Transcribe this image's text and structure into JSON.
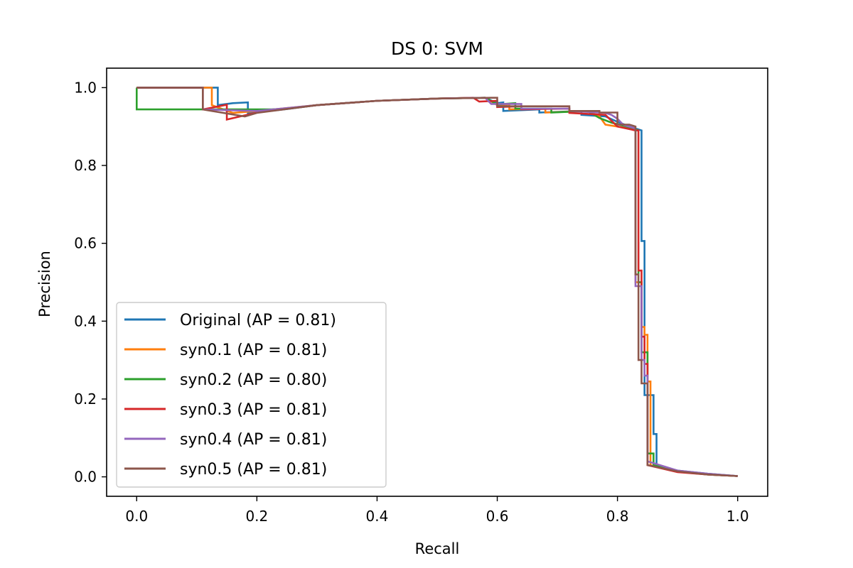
{
  "chart_data": {
    "type": "line",
    "title": "DS 0: SVM",
    "xlabel": "Recall",
    "ylabel": "Precision",
    "xlim": [
      -0.05,
      1.05
    ],
    "ylim": [
      -0.05,
      1.05
    ],
    "xticks": [
      "0.0",
      "0.2",
      "0.4",
      "0.6",
      "0.8",
      "1.0"
    ],
    "yticks": [
      "0.0",
      "0.2",
      "0.4",
      "0.6",
      "0.8",
      "1.0"
    ],
    "grid": false,
    "legend_position": "lower-left",
    "series": [
      {
        "name": "Original (AP = 0.81)",
        "color": "#1f77b4",
        "points": [
          [
            0,
            1.0
          ],
          [
            0.135,
            1.0
          ],
          [
            0.135,
            0.955
          ],
          [
            0.16,
            0.96
          ],
          [
            0.185,
            0.962
          ],
          [
            0.185,
            0.934
          ],
          [
            0.25,
            0.945
          ],
          [
            0.3,
            0.955
          ],
          [
            0.4,
            0.966
          ],
          [
            0.5,
            0.972
          ],
          [
            0.58,
            0.974
          ],
          [
            0.6,
            0.96
          ],
          [
            0.61,
            0.962
          ],
          [
            0.61,
            0.94
          ],
          [
            0.67,
            0.944
          ],
          [
            0.67,
            0.936
          ],
          [
            0.74,
            0.94
          ],
          [
            0.74,
            0.93
          ],
          [
            0.78,
            0.926
          ],
          [
            0.8,
            0.912
          ],
          [
            0.82,
            0.9
          ],
          [
            0.84,
            0.89
          ],
          [
            0.84,
            0.606
          ],
          [
            0.845,
            0.606
          ],
          [
            0.845,
            0.21
          ],
          [
            0.86,
            0.21
          ],
          [
            0.86,
            0.11
          ],
          [
            0.865,
            0.11
          ],
          [
            0.865,
            0.03
          ],
          [
            0.9,
            0.016
          ],
          [
            0.95,
            0.008
          ],
          [
            1.0,
            0.002
          ]
        ]
      },
      {
        "name": "syn0.1 (AP = 0.81)",
        "color": "#ff7f0e",
        "points": [
          [
            0,
            1.0
          ],
          [
            0.125,
            1.0
          ],
          [
            0.125,
            0.955
          ],
          [
            0.16,
            0.935
          ],
          [
            0.2,
            0.94
          ],
          [
            0.3,
            0.955
          ],
          [
            0.4,
            0.966
          ],
          [
            0.5,
            0.972
          ],
          [
            0.58,
            0.974
          ],
          [
            0.6,
            0.955
          ],
          [
            0.62,
            0.957
          ],
          [
            0.62,
            0.944
          ],
          [
            0.68,
            0.946
          ],
          [
            0.68,
            0.936
          ],
          [
            0.75,
            0.94
          ],
          [
            0.77,
            0.926
          ],
          [
            0.78,
            0.905
          ],
          [
            0.82,
            0.895
          ],
          [
            0.83,
            0.89
          ],
          [
            0.83,
            0.5
          ],
          [
            0.84,
            0.5
          ],
          [
            0.84,
            0.385
          ],
          [
            0.845,
            0.385
          ],
          [
            0.845,
            0.365
          ],
          [
            0.85,
            0.365
          ],
          [
            0.85,
            0.245
          ],
          [
            0.855,
            0.245
          ],
          [
            0.855,
            0.03
          ],
          [
            0.9,
            0.013
          ],
          [
            0.95,
            0.006
          ],
          [
            1.0,
            0.002
          ]
        ]
      },
      {
        "name": "syn0.2 (AP = 0.80)",
        "color": "#2ca02c",
        "points": [
          [
            0,
            1.0
          ],
          [
            0,
            0.944
          ],
          [
            0.225,
            0.944
          ],
          [
            0.25,
            0.946
          ],
          [
            0.3,
            0.955
          ],
          [
            0.4,
            0.966
          ],
          [
            0.5,
            0.972
          ],
          [
            0.58,
            0.974
          ],
          [
            0.6,
            0.957
          ],
          [
            0.63,
            0.96
          ],
          [
            0.63,
            0.946
          ],
          [
            0.69,
            0.946
          ],
          [
            0.69,
            0.936
          ],
          [
            0.75,
            0.94
          ],
          [
            0.77,
            0.922
          ],
          [
            0.79,
            0.91
          ],
          [
            0.82,
            0.898
          ],
          [
            0.835,
            0.89
          ],
          [
            0.835,
            0.5
          ],
          [
            0.84,
            0.5
          ],
          [
            0.84,
            0.32
          ],
          [
            0.85,
            0.32
          ],
          [
            0.85,
            0.06
          ],
          [
            0.86,
            0.06
          ],
          [
            0.86,
            0.03
          ],
          [
            0.9,
            0.014
          ],
          [
            0.95,
            0.006
          ],
          [
            1.0,
            0.002
          ]
        ]
      },
      {
        "name": "syn0.3 (AP = 0.81)",
        "color": "#d62728",
        "points": [
          [
            0,
            1.0
          ],
          [
            0.11,
            1.0
          ],
          [
            0.11,
            0.944
          ],
          [
            0.15,
            0.956
          ],
          [
            0.15,
            0.918
          ],
          [
            0.2,
            0.936
          ],
          [
            0.3,
            0.955
          ],
          [
            0.4,
            0.966
          ],
          [
            0.5,
            0.972
          ],
          [
            0.56,
            0.974
          ],
          [
            0.57,
            0.964
          ],
          [
            0.6,
            0.966
          ],
          [
            0.6,
            0.95
          ],
          [
            0.64,
            0.952
          ],
          [
            0.64,
            0.944
          ],
          [
            0.72,
            0.946
          ],
          [
            0.72,
            0.935
          ],
          [
            0.78,
            0.93
          ],
          [
            0.8,
            0.9
          ],
          [
            0.83,
            0.89
          ],
          [
            0.835,
            0.89
          ],
          [
            0.835,
            0.53
          ],
          [
            0.84,
            0.53
          ],
          [
            0.84,
            0.36
          ],
          [
            0.845,
            0.36
          ],
          [
            0.845,
            0.29
          ],
          [
            0.85,
            0.29
          ],
          [
            0.85,
            0.03
          ],
          [
            0.9,
            0.012
          ],
          [
            0.95,
            0.006
          ],
          [
            1.0,
            0.002
          ]
        ]
      },
      {
        "name": "syn0.4 (AP = 0.81)",
        "color": "#9467bd",
        "points": [
          [
            0,
            1.0
          ],
          [
            0.11,
            1.0
          ],
          [
            0.11,
            0.944
          ],
          [
            0.2,
            0.94
          ],
          [
            0.3,
            0.955
          ],
          [
            0.4,
            0.966
          ],
          [
            0.5,
            0.972
          ],
          [
            0.58,
            0.974
          ],
          [
            0.59,
            0.958
          ],
          [
            0.64,
            0.958
          ],
          [
            0.64,
            0.946
          ],
          [
            0.72,
            0.946
          ],
          [
            0.72,
            0.94
          ],
          [
            0.78,
            0.935
          ],
          [
            0.79,
            0.93
          ],
          [
            0.8,
            0.92
          ],
          [
            0.81,
            0.904
          ],
          [
            0.83,
            0.895
          ],
          [
            0.83,
            0.49
          ],
          [
            0.84,
            0.49
          ],
          [
            0.84,
            0.3
          ],
          [
            0.845,
            0.3
          ],
          [
            0.845,
            0.26
          ],
          [
            0.85,
            0.26
          ],
          [
            0.85,
            0.04
          ],
          [
            0.9,
            0.016
          ],
          [
            0.95,
            0.008
          ],
          [
            1.0,
            0.002
          ]
        ]
      },
      {
        "name": "syn0.5 (AP = 0.81)",
        "color": "#8c564b",
        "points": [
          [
            0,
            1.0
          ],
          [
            0.11,
            1.0
          ],
          [
            0.11,
            0.944
          ],
          [
            0.18,
            0.926
          ],
          [
            0.2,
            0.935
          ],
          [
            0.3,
            0.955
          ],
          [
            0.4,
            0.966
          ],
          [
            0.5,
            0.972
          ],
          [
            0.59,
            0.974
          ],
          [
            0.6,
            0.974
          ],
          [
            0.6,
            0.952
          ],
          [
            0.71,
            0.952
          ],
          [
            0.72,
            0.952
          ],
          [
            0.72,
            0.94
          ],
          [
            0.77,
            0.94
          ],
          [
            0.77,
            0.936
          ],
          [
            0.8,
            0.936
          ],
          [
            0.8,
            0.905
          ],
          [
            0.82,
            0.905
          ],
          [
            0.83,
            0.9
          ],
          [
            0.83,
            0.52
          ],
          [
            0.835,
            0.52
          ],
          [
            0.835,
            0.3
          ],
          [
            0.84,
            0.3
          ],
          [
            0.84,
            0.24
          ],
          [
            0.85,
            0.24
          ],
          [
            0.85,
            0.03
          ],
          [
            0.9,
            0.014
          ],
          [
            0.95,
            0.006
          ],
          [
            1.0,
            0.002
          ]
        ]
      }
    ]
  }
}
